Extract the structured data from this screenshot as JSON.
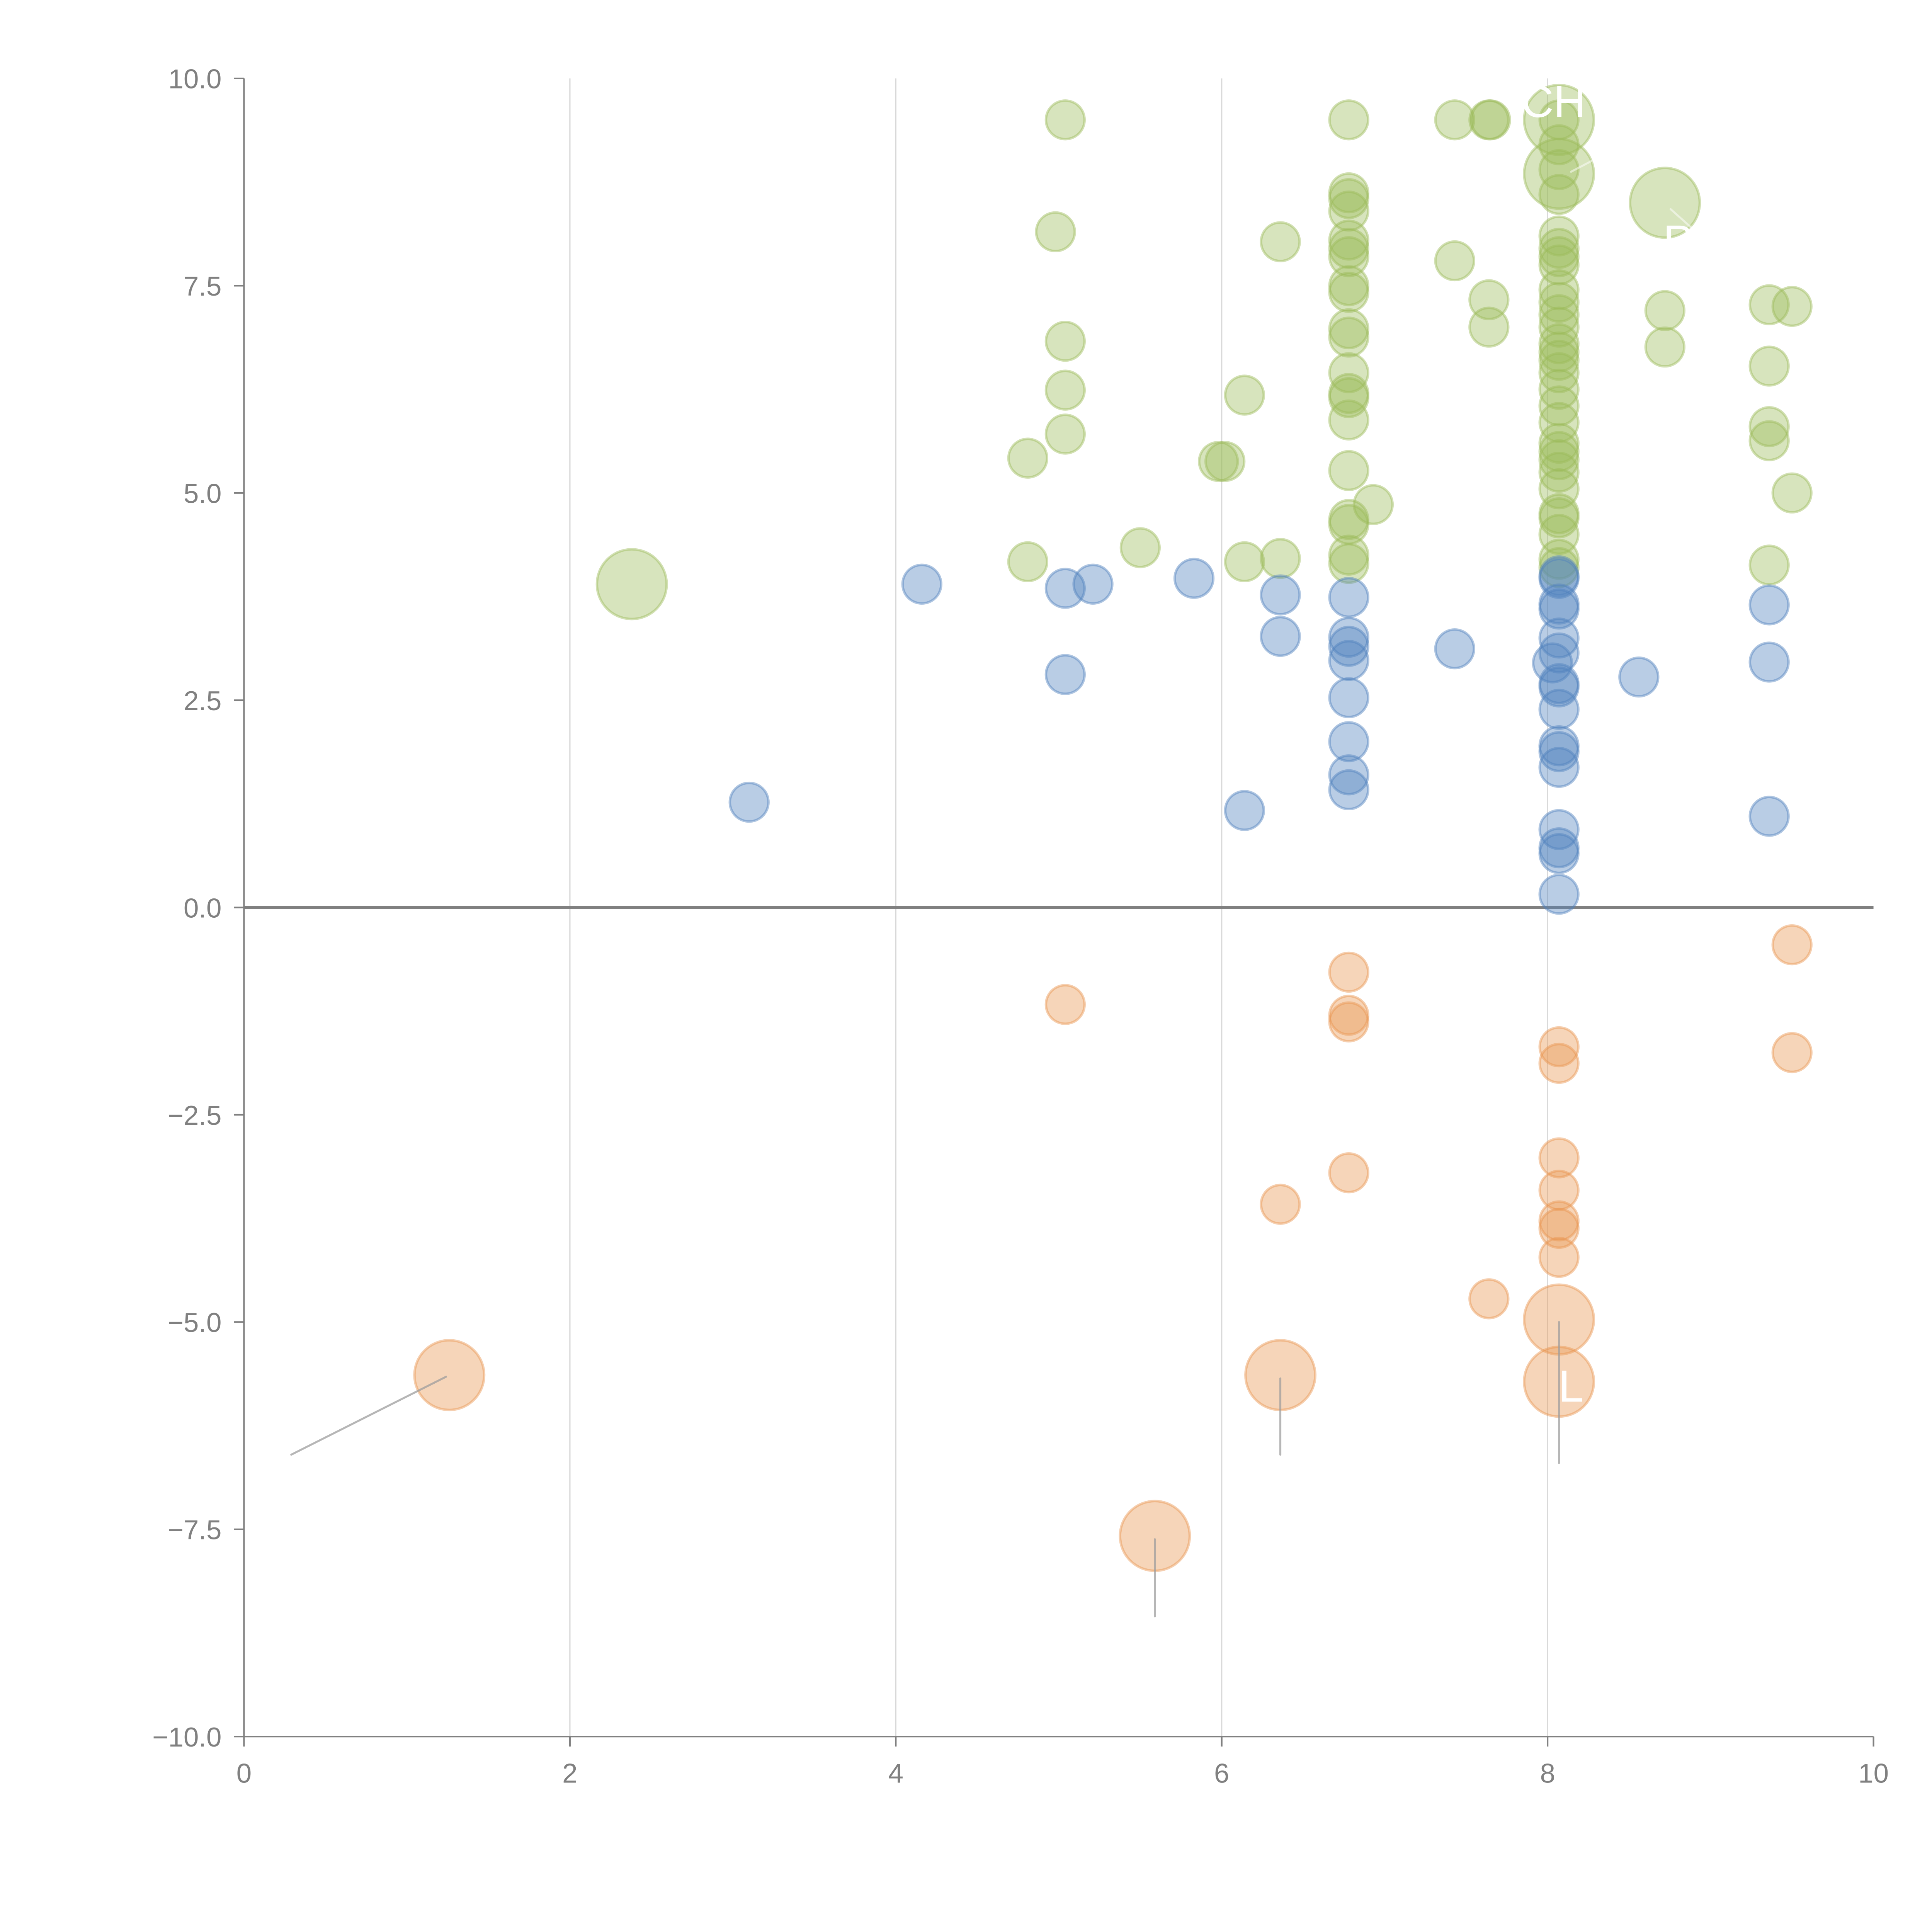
{
  "chart_data": {
    "type": "scatter",
    "title": "",
    "xlabel": "",
    "ylabel": "",
    "xlim": [
      0,
      10
    ],
    "ylim": [
      -10,
      10
    ],
    "x_ticks": [
      "0",
      "2",
      "4",
      "6",
      "8",
      "10"
    ],
    "y_ticks": [
      "10.0",
      "7.5",
      "5.0",
      "2.5",
      "0.0",
      "−2.5",
      "−5.0",
      "−7.5",
      "−10.0"
    ],
    "grid": "vertical gridlines at x ticks; horizontal reference line at y=0",
    "legend": "none",
    "colors": {
      "green": "#9bbb59",
      "blue": "#4f81bd",
      "orange": "#e8954f"
    },
    "series": [
      {
        "name": "green",
        "color": "#9bbb59",
        "points": [
          [
            2.38,
            3.9,
            "large"
          ],
          [
            5.04,
            9.5
          ],
          [
            4.98,
            8.15
          ],
          [
            5.04,
            6.83
          ],
          [
            5.04,
            6.24
          ],
          [
            5.04,
            5.71
          ],
          [
            4.81,
            5.42
          ],
          [
            4.81,
            4.17
          ],
          [
            5.5,
            4.34
          ],
          [
            5.98,
            5.38
          ],
          [
            6.02,
            5.38
          ],
          [
            6.14,
            6.18
          ],
          [
            6.14,
            4.17
          ],
          [
            6.36,
            8.03
          ],
          [
            6.36,
            4.21
          ],
          [
            6.78,
            9.5
          ],
          [
            6.78,
            8.62
          ],
          [
            6.78,
            8.55
          ],
          [
            6.78,
            8.4
          ],
          [
            6.78,
            8.05
          ],
          [
            6.78,
            7.95
          ],
          [
            6.78,
            7.85
          ],
          [
            6.78,
            7.5
          ],
          [
            6.78,
            7.42
          ],
          [
            6.78,
            6.98
          ],
          [
            6.78,
            6.88
          ],
          [
            6.78,
            6.45
          ],
          [
            6.78,
            6.2
          ],
          [
            6.78,
            6.15
          ],
          [
            6.78,
            5.88
          ],
          [
            6.78,
            5.27
          ],
          [
            6.78,
            4.68
          ],
          [
            6.78,
            4.62
          ],
          [
            6.78,
            4.25
          ],
          [
            6.78,
            4.15
          ],
          [
            6.93,
            4.86
          ],
          [
            7.43,
            9.5
          ],
          [
            7.43,
            7.8
          ],
          [
            7.64,
            9.5
          ],
          [
            7.65,
            9.5
          ],
          [
            7.64,
            7.33
          ],
          [
            7.64,
            7.0
          ],
          [
            8.07,
            9.5,
            "large"
          ],
          [
            8.07,
            8.85,
            "large"
          ],
          [
            8.07,
            9.5
          ],
          [
            8.07,
            9.2
          ],
          [
            8.07,
            8.9
          ],
          [
            8.07,
            8.6
          ],
          [
            8.07,
            8.1
          ],
          [
            8.07,
            7.95
          ],
          [
            8.07,
            7.85
          ],
          [
            8.07,
            7.75
          ],
          [
            8.07,
            7.45
          ],
          [
            8.07,
            7.3
          ],
          [
            8.07,
            7.15
          ],
          [
            8.07,
            7.0
          ],
          [
            8.07,
            6.8
          ],
          [
            8.07,
            6.7
          ],
          [
            8.07,
            6.6
          ],
          [
            8.07,
            6.45
          ],
          [
            8.07,
            6.25
          ],
          [
            8.07,
            6.05
          ],
          [
            8.07,
            5.85
          ],
          [
            8.07,
            5.6
          ],
          [
            8.07,
            5.5
          ],
          [
            8.07,
            5.4
          ],
          [
            8.07,
            5.25
          ],
          [
            8.07,
            5.05
          ],
          [
            8.07,
            4.75
          ],
          [
            8.07,
            4.7
          ],
          [
            8.07,
            4.5
          ],
          [
            8.07,
            4.2
          ],
          [
            8.07,
            4.1
          ],
          [
            8.72,
            8.5,
            "large"
          ],
          [
            8.72,
            7.2
          ],
          [
            8.72,
            6.76
          ],
          [
            9.36,
            7.27
          ],
          [
            9.5,
            7.25
          ],
          [
            9.36,
            6.53
          ],
          [
            9.36,
            5.8
          ],
          [
            9.36,
            5.63
          ],
          [
            9.5,
            5.0
          ],
          [
            9.36,
            4.13
          ]
        ]
      },
      {
        "name": "blue",
        "color": "#4f81bd",
        "points": [
          [
            3.1,
            1.27
          ],
          [
            4.16,
            3.9
          ],
          [
            5.04,
            3.85
          ],
          [
            5.21,
            3.9
          ],
          [
            5.04,
            2.81
          ],
          [
            5.83,
            3.97
          ],
          [
            6.14,
            1.17
          ],
          [
            6.36,
            3.77
          ],
          [
            6.36,
            3.27
          ],
          [
            6.78,
            3.74
          ],
          [
            6.78,
            3.26
          ],
          [
            6.78,
            3.15
          ],
          [
            6.78,
            2.98
          ],
          [
            6.78,
            2.53
          ],
          [
            6.78,
            2.0
          ],
          [
            6.78,
            1.6
          ],
          [
            6.78,
            1.42
          ],
          [
            7.43,
            3.12
          ],
          [
            8.07,
            4.0
          ],
          [
            8.07,
            3.97
          ],
          [
            8.07,
            3.66
          ],
          [
            8.07,
            3.6
          ],
          [
            8.07,
            3.25
          ],
          [
            8.07,
            3.07
          ],
          [
            8.03,
            2.95
          ],
          [
            8.07,
            2.7
          ],
          [
            8.07,
            2.66
          ],
          [
            8.07,
            2.39
          ],
          [
            8.07,
            1.95
          ],
          [
            8.07,
            1.88
          ],
          [
            8.07,
            1.69
          ],
          [
            8.07,
            0.94
          ],
          [
            8.07,
            0.72
          ],
          [
            8.07,
            0.65
          ],
          [
            8.07,
            0.16
          ],
          [
            8.56,
            2.78
          ],
          [
            9.36,
            3.65
          ],
          [
            9.36,
            2.96
          ],
          [
            9.36,
            1.1
          ]
        ]
      },
      {
        "name": "orange",
        "color": "#e8954f",
        "points": [
          [
            1.26,
            -5.64,
            "large"
          ],
          [
            5.04,
            -1.17
          ],
          [
            5.59,
            -7.58,
            "large"
          ],
          [
            6.36,
            -3.58
          ],
          [
            6.36,
            -5.64,
            "large"
          ],
          [
            6.78,
            -0.78
          ],
          [
            6.78,
            -1.3
          ],
          [
            6.78,
            -1.38
          ],
          [
            6.78,
            -3.2
          ],
          [
            7.64,
            -4.72
          ],
          [
            8.07,
            -1.68
          ],
          [
            8.07,
            -1.88
          ],
          [
            8.07,
            -3.02
          ],
          [
            8.07,
            -3.41
          ],
          [
            8.07,
            -3.78
          ],
          [
            8.07,
            -3.87
          ],
          [
            8.07,
            -4.22
          ],
          [
            8.07,
            -4.97,
            "large"
          ],
          [
            8.07,
            -5.72,
            "large"
          ],
          [
            9.5,
            -0.45
          ],
          [
            9.5,
            -1.75
          ]
        ]
      }
    ],
    "annotations": [
      {
        "text": "CH",
        "near": [
          8.07,
          9.5
        ],
        "color": "#ffffff",
        "note": "partially clipped white label"
      },
      {
        "text": "P",
        "near": [
          8.72,
          8.5
        ],
        "color": "#ffffff",
        "note": "partially clipped white label"
      },
      {
        "text": "L",
        "near": [
          8.07,
          -5.72
        ],
        "color": "#ffffff"
      }
    ],
    "leader_lines": [
      {
        "from": [
          1.24,
          -5.66
        ],
        "to": [
          0.29,
          -6.6
        ]
      },
      {
        "from": [
          6.36,
          -5.68
        ],
        "to": [
          6.36,
          -6.6
        ]
      },
      {
        "from": [
          5.59,
          -7.62
        ],
        "to": [
          5.59,
          -8.55
        ]
      },
      {
        "from": [
          8.07,
          -5.0
        ],
        "to": [
          8.07,
          -6.7
        ]
      }
    ]
  }
}
